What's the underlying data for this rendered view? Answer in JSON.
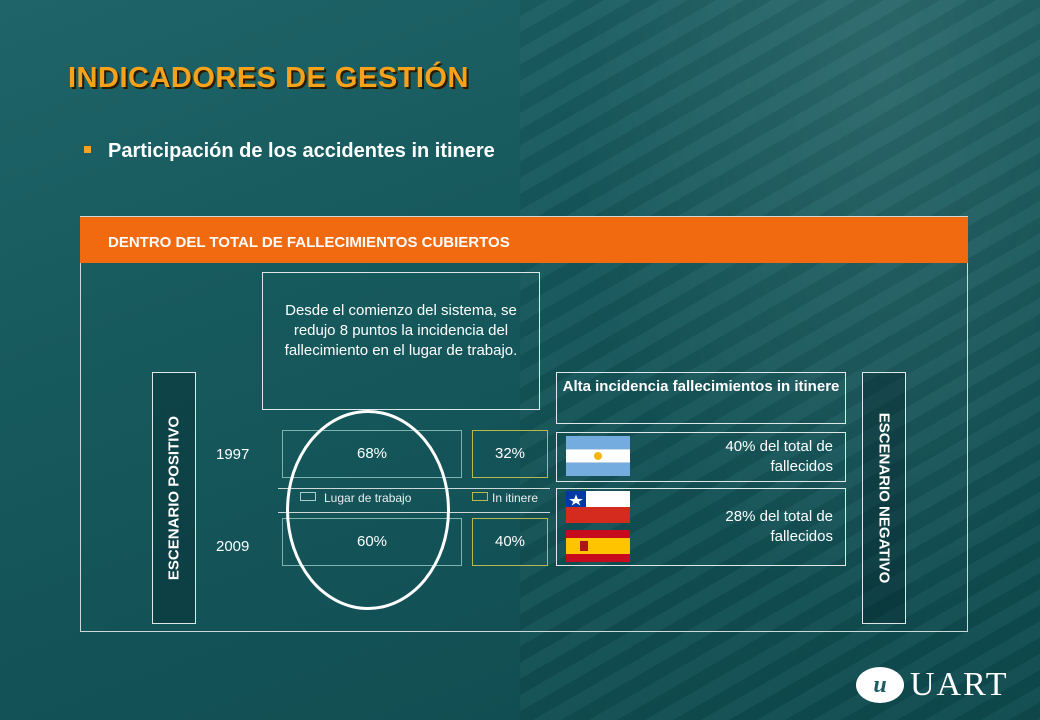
{
  "slide": {
    "title": "INDICADORES DE GESTIÓN",
    "subtitle": "Participación de los accidentes in itinere"
  },
  "panel": {
    "header": "DENTRO DEL TOTAL DE FALLECIMIENTOS CUBIERTOS",
    "left_label": "ESCENARIO POSITIVO",
    "right_label": "ESCENARIO NEGATIVO",
    "note": "Desde el comienzo del sistema, se redujo 8 puntos la incidencia del fallecimiento en el lugar de trabajo."
  },
  "comparison": {
    "rows": [
      {
        "year": "1997",
        "lugar": "68%",
        "itinere": "32%"
      },
      {
        "year": "2009",
        "lugar": "60%",
        "itinere": "40%"
      }
    ],
    "legend": {
      "lugar": "Lugar de trabajo",
      "itinere": "In itinere"
    }
  },
  "negative": {
    "heading": "Alta incidencia fallecimientos in itinere",
    "stats": [
      {
        "text": "40% del total de fallecidos",
        "flags": [
          "argentina-flag-icon"
        ]
      },
      {
        "text": "28% del total de fallecidos",
        "flags": [
          "chile-flag-icon",
          "spain-flag-icon"
        ]
      }
    ]
  },
  "logo": {
    "text": "UART",
    "mark": "u"
  },
  "colors": {
    "accent": "#f7a21b",
    "header": "#f26a10",
    "background": "#15575b"
  }
}
